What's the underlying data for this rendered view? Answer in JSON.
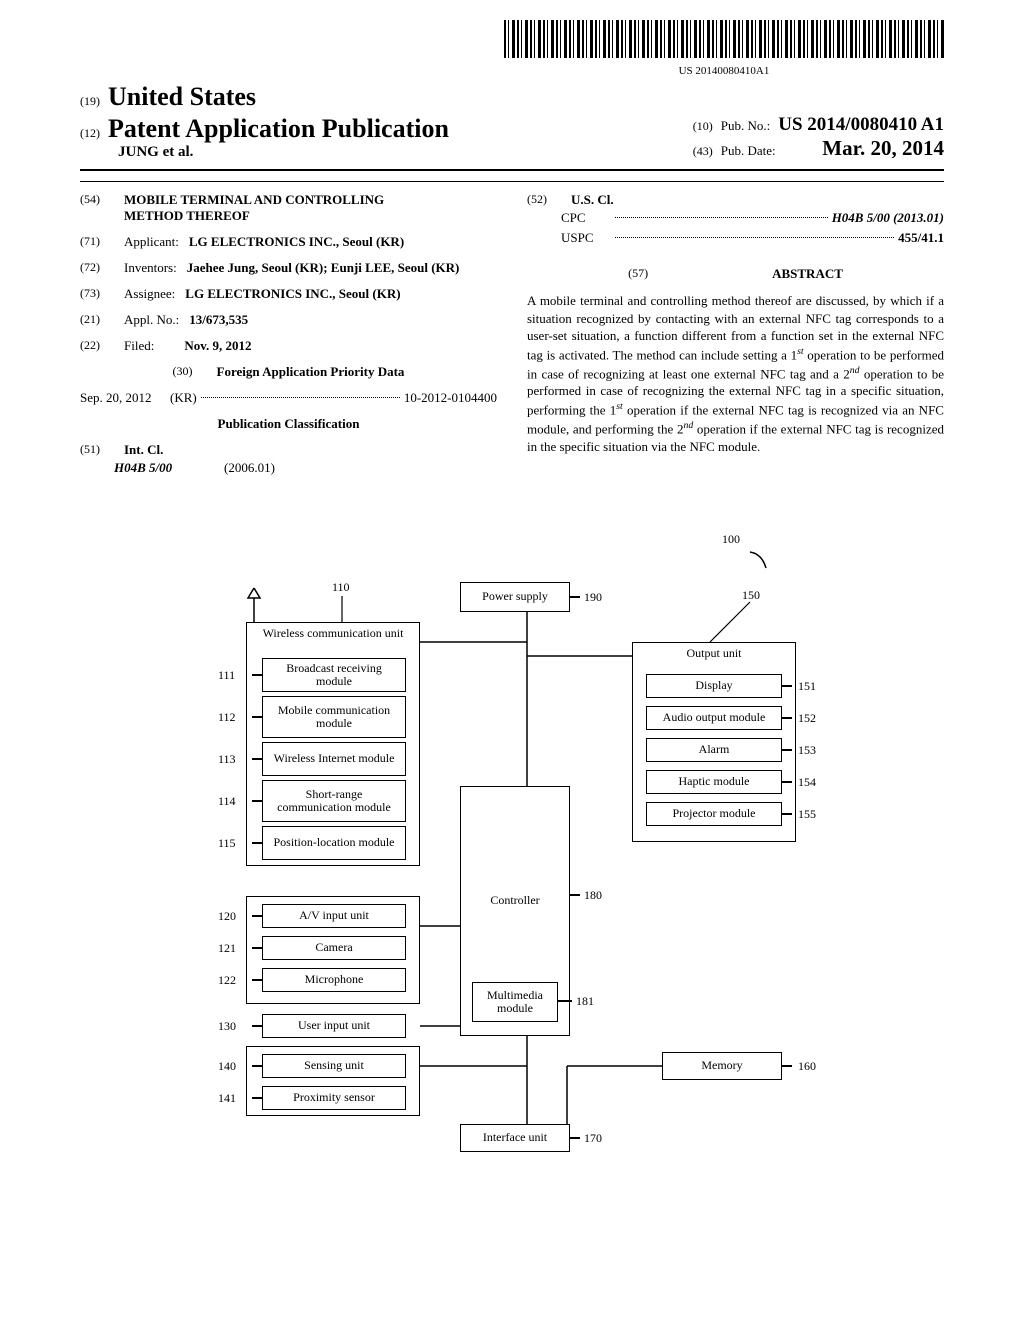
{
  "barcode_text": "US 20140080410A1",
  "header": {
    "code19": "(19)",
    "country": "United States",
    "code12": "(12)",
    "pub_type": "Patent Application Publication",
    "authors": "JUNG et al.",
    "code10": "(10)",
    "pub_no_label": "Pub. No.:",
    "pub_no": "US 2014/0080410 A1",
    "code43": "(43)",
    "pub_date_label": "Pub. Date:",
    "pub_date": "Mar. 20, 2014"
  },
  "fields": {
    "code54": "(54)",
    "title": "MOBILE TERMINAL AND CONTROLLING METHOD THEREOF",
    "code71": "(71)",
    "applicant_label": "Applicant:",
    "applicant": "LG ELECTRONICS INC., Seoul (KR)",
    "code72": "(72)",
    "inventors_label": "Inventors:",
    "inventors": "Jaehee Jung, Seoul (KR); Eunji LEE, Seoul (KR)",
    "code73": "(73)",
    "assignee_label": "Assignee:",
    "assignee": "LG ELECTRONICS INC., Seoul (KR)",
    "code21": "(21)",
    "appl_label": "Appl. No.:",
    "appl_no": "13/673,535",
    "code22": "(22)",
    "filed_label": "Filed:",
    "filed": "Nov. 9, 2012",
    "code30": "(30)",
    "foreign_title": "Foreign Application Priority Data",
    "foreign_date": "Sep. 20, 2012",
    "foreign_country": "(KR)",
    "foreign_no": "10-2012-0104400",
    "pubclass_title": "Publication Classification",
    "code51": "(51)",
    "intcl_label": "Int. Cl.",
    "intcl_code": "H04B 5/00",
    "intcl_year": "(2006.01)",
    "code52": "(52)",
    "uscl_label": "U.S. Cl.",
    "cpc_label": "CPC",
    "cpc_val": "H04B 5/00 (2013.01)",
    "uspc_label": "USPC",
    "uspc_val": "455/41.1",
    "code57": "(57)",
    "abstract_label": "ABSTRACT",
    "abstract_text": "A mobile terminal and controlling method thereof are discussed, by which if a situation recognized by contacting with an external NFC tag corresponds to a user-set situation, a function different from a function set in the external NFC tag is activated. The method can include setting a 1st operation to be performed in case of recognizing at least one external NFC tag and a 2nd operation to be performed in case of recognizing the external NFC tag in a specific situation, performing the 1st operation if the external NFC tag is recognized via an NFC module, and performing the 2nd operation if the external NFC tag is recognized in the specific situation via the NFC module."
  },
  "diagram": {
    "ref100": "100",
    "ref190": "190",
    "ref150": "150",
    "ref110": "110",
    "ref111": "111",
    "ref112": "112",
    "ref113": "113",
    "ref114": "114",
    "ref115": "115",
    "ref120": "120",
    "ref121": "121",
    "ref122": "122",
    "ref130": "130",
    "ref140": "140",
    "ref141": "141",
    "ref151": "151",
    "ref152": "152",
    "ref153": "153",
    "ref154": "154",
    "ref155": "155",
    "ref160": "160",
    "ref170": "170",
    "ref180": "180",
    "ref181": "181",
    "power_supply": "Power supply",
    "wireless_unit": "Wireless communication unit",
    "broadcast": "Broadcast receiving module",
    "mobile_comm": "Mobile communication module",
    "wireless_internet": "Wireless Internet module",
    "short_range": "Short-range communication module",
    "pos_loc": "Position-location module",
    "av_input": "A/V input unit",
    "camera": "Camera",
    "microphone": "Microphone",
    "user_input": "User input unit",
    "sensing": "Sensing unit",
    "proximity": "Proximity sensor",
    "controller": "Controller",
    "multimedia": "Multimedia module",
    "output_unit": "Output unit",
    "display": "Display",
    "audio": "Audio output module",
    "alarm": "Alarm",
    "haptic": "Haptic module",
    "projector": "Projector module",
    "memory": "Memory",
    "interface": "Interface unit"
  }
}
